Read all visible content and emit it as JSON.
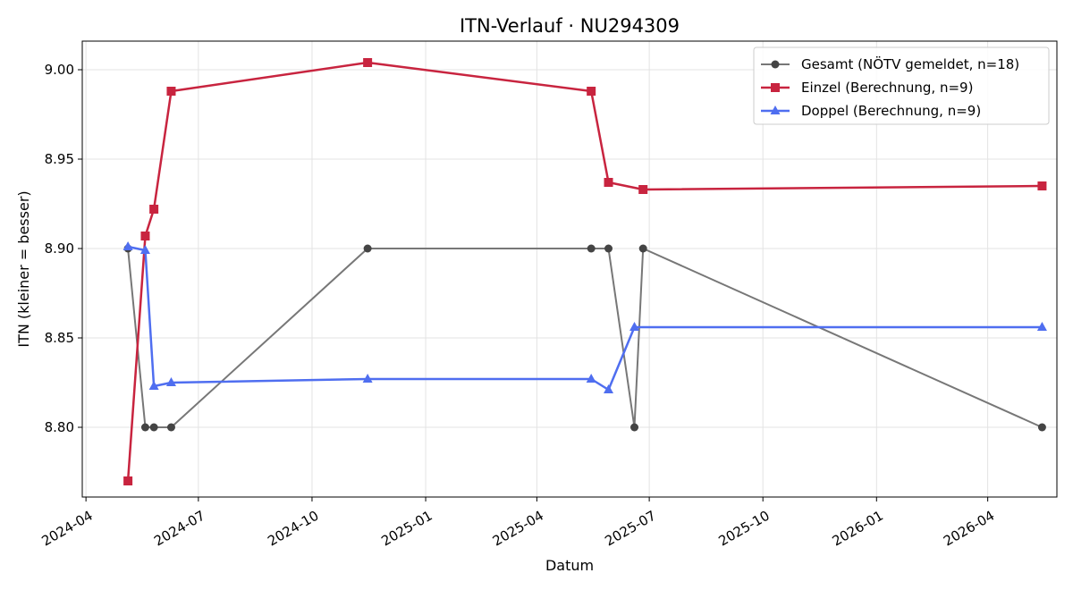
{
  "chart_data": {
    "type": "line",
    "title": "ITN-Verlauf · NU294309",
    "xlabel": "Datum",
    "ylabel": "ITN  (kleiner = besser)",
    "xlim": [
      "2024-03-29",
      "2026-05-27"
    ],
    "ylim": [
      8.761,
      9.016
    ],
    "x_ticks": [
      "2024-04",
      "2024-07",
      "2024-10",
      "2025-01",
      "2025-04",
      "2025-07",
      "2025-10",
      "2026-01",
      "2026-04"
    ],
    "y_ticks": [
      "8.80",
      "8.85",
      "8.90",
      "8.95",
      "9.00"
    ],
    "grid": true,
    "legend_position": "top-right",
    "series": [
      {
        "name": "Gesamt (NÖTV gemeldet, n=18)",
        "color": "#777777",
        "marker_color": "#444444",
        "marker": "circle",
        "points": [
          {
            "x": "2024-05-05",
            "y": 8.9
          },
          {
            "x": "2024-05-19",
            "y": 8.8
          },
          {
            "x": "2024-05-26",
            "y": 8.8
          },
          {
            "x": "2024-06-09",
            "y": 8.8
          },
          {
            "x": "2024-11-15",
            "y": 8.9
          },
          {
            "x": "2025-05-15",
            "y": 8.9
          },
          {
            "x": "2025-05-29",
            "y": 8.9
          },
          {
            "x": "2025-06-19",
            "y": 8.8
          },
          {
            "x": "2025-06-26",
            "y": 8.9
          },
          {
            "x": "2026-05-15",
            "y": 8.8
          }
        ]
      },
      {
        "name": "Einzel (Berechnung, n=9)",
        "color": "#c8243f",
        "marker_color": "#c8243f",
        "marker": "square",
        "points": [
          {
            "x": "2024-05-05",
            "y": 8.77
          },
          {
            "x": "2024-05-19",
            "y": 8.907
          },
          {
            "x": "2024-05-26",
            "y": 8.922
          },
          {
            "x": "2024-06-09",
            "y": 8.988
          },
          {
            "x": "2024-11-15",
            "y": 9.004
          },
          {
            "x": "2025-05-15",
            "y": 8.988
          },
          {
            "x": "2025-05-29",
            "y": 8.937
          },
          {
            "x": "2025-06-26",
            "y": 8.933
          },
          {
            "x": "2026-05-15",
            "y": 8.935
          }
        ]
      },
      {
        "name": "Doppel (Berechnung, n=9)",
        "color": "#4f6ef0",
        "marker_color": "#4f6ef0",
        "marker": "triangle",
        "points": [
          {
            "x": "2024-05-05",
            "y": 8.901
          },
          {
            "x": "2024-05-19",
            "y": 8.899
          },
          {
            "x": "2024-05-26",
            "y": 8.823
          },
          {
            "x": "2024-06-09",
            "y": 8.825
          },
          {
            "x": "2024-11-15",
            "y": 8.827
          },
          {
            "x": "2025-05-15",
            "y": 8.827
          },
          {
            "x": "2025-05-29",
            "y": 8.821
          },
          {
            "x": "2025-06-19",
            "y": 8.856
          },
          {
            "x": "2026-05-15",
            "y": 8.856
          }
        ]
      }
    ]
  }
}
